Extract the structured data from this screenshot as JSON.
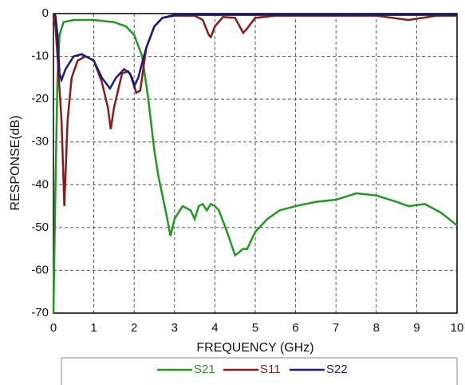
{
  "chart_data": {
    "type": "line",
    "xlabel": "FREQUENCY (GHz)",
    "ylabel": "RESPONSE(dB)",
    "xlim": [
      0,
      10
    ],
    "ylim": [
      -70,
      0
    ],
    "xticks": [
      0,
      1,
      2,
      3,
      4,
      5,
      6,
      7,
      8,
      9,
      10
    ],
    "yticks": [
      -70,
      -60,
      -50,
      -40,
      -30,
      -20,
      -10,
      0
    ],
    "grid": true,
    "legend": "bottom",
    "series": [
      {
        "name": "S21",
        "color": "#1f9a1f",
        "x": [
          0,
          0.05,
          0.1,
          0.15,
          0.25,
          0.5,
          1,
          1.5,
          1.8,
          2,
          2.2,
          2.35,
          2.5,
          2.6,
          2.8,
          2.9,
          3.0,
          3.2,
          3.4,
          3.5,
          3.6,
          3.7,
          3.8,
          3.9,
          4.0,
          4.1,
          4.3,
          4.5,
          4.7,
          4.8,
          5,
          5.3,
          5.6,
          6,
          6.5,
          7,
          7.5,
          8,
          8.5,
          8.8,
          9.2,
          9.6,
          10
        ],
        "values": [
          -70,
          -40,
          -15,
          -5,
          -2,
          -1.5,
          -1.5,
          -2,
          -3,
          -5,
          -10,
          -20,
          -32,
          -38,
          -47,
          -52,
          -48,
          -45,
          -46,
          -48,
          -45,
          -44.5,
          -46,
          -44.5,
          -45,
          -46,
          -51,
          -56.5,
          -55,
          -55,
          -51,
          -48,
          -46,
          -45,
          -44,
          -43.5,
          -42,
          -42.5,
          -44,
          -45,
          -44.5,
          -46.5,
          -49.5
        ]
      },
      {
        "name": "S11",
        "color": "#8b1a1a",
        "x": [
          0,
          0.05,
          0.1,
          0.2,
          0.27,
          0.35,
          0.45,
          0.6,
          0.8,
          1,
          1.2,
          1.35,
          1.42,
          1.5,
          1.7,
          1.85,
          1.95,
          2.05,
          2.15,
          2.3,
          2.5,
          2.7,
          3,
          3.5,
          3.7,
          3.85,
          3.9,
          4.0,
          4.2,
          4.5,
          4.7,
          4.8,
          5,
          5.5,
          8,
          8.8,
          9.5,
          10
        ],
        "values": [
          -0.5,
          -3,
          -10,
          -25,
          -45,
          -25,
          -15,
          -11,
          -10,
          -11,
          -16,
          -22,
          -27,
          -22,
          -14,
          -13.5,
          -15,
          -18.5,
          -18,
          -8,
          -3,
          -1,
          -0.5,
          -0.5,
          -1.5,
          -5,
          -5.5,
          -3,
          -0.8,
          -1,
          -4.5,
          -3.5,
          -1,
          -0.5,
          -0.5,
          -1.5,
          -0.5,
          -0.5
        ]
      },
      {
        "name": "S22",
        "color": "#1a1a80",
        "x": [
          0,
          0.05,
          0.1,
          0.15,
          0.2,
          0.3,
          0.5,
          0.7,
          1,
          1.2,
          1.4,
          1.55,
          1.75,
          1.9,
          2.0,
          2.1,
          2.3,
          2.5,
          2.7,
          3,
          10
        ],
        "values": [
          0,
          -0.5,
          -5,
          -14,
          -15.5,
          -13,
          -10,
          -9.5,
          -11,
          -15,
          -17.5,
          -15,
          -13,
          -14,
          -17,
          -15,
          -8,
          -3,
          -1,
          -0.3,
          -0.3
        ]
      }
    ]
  }
}
